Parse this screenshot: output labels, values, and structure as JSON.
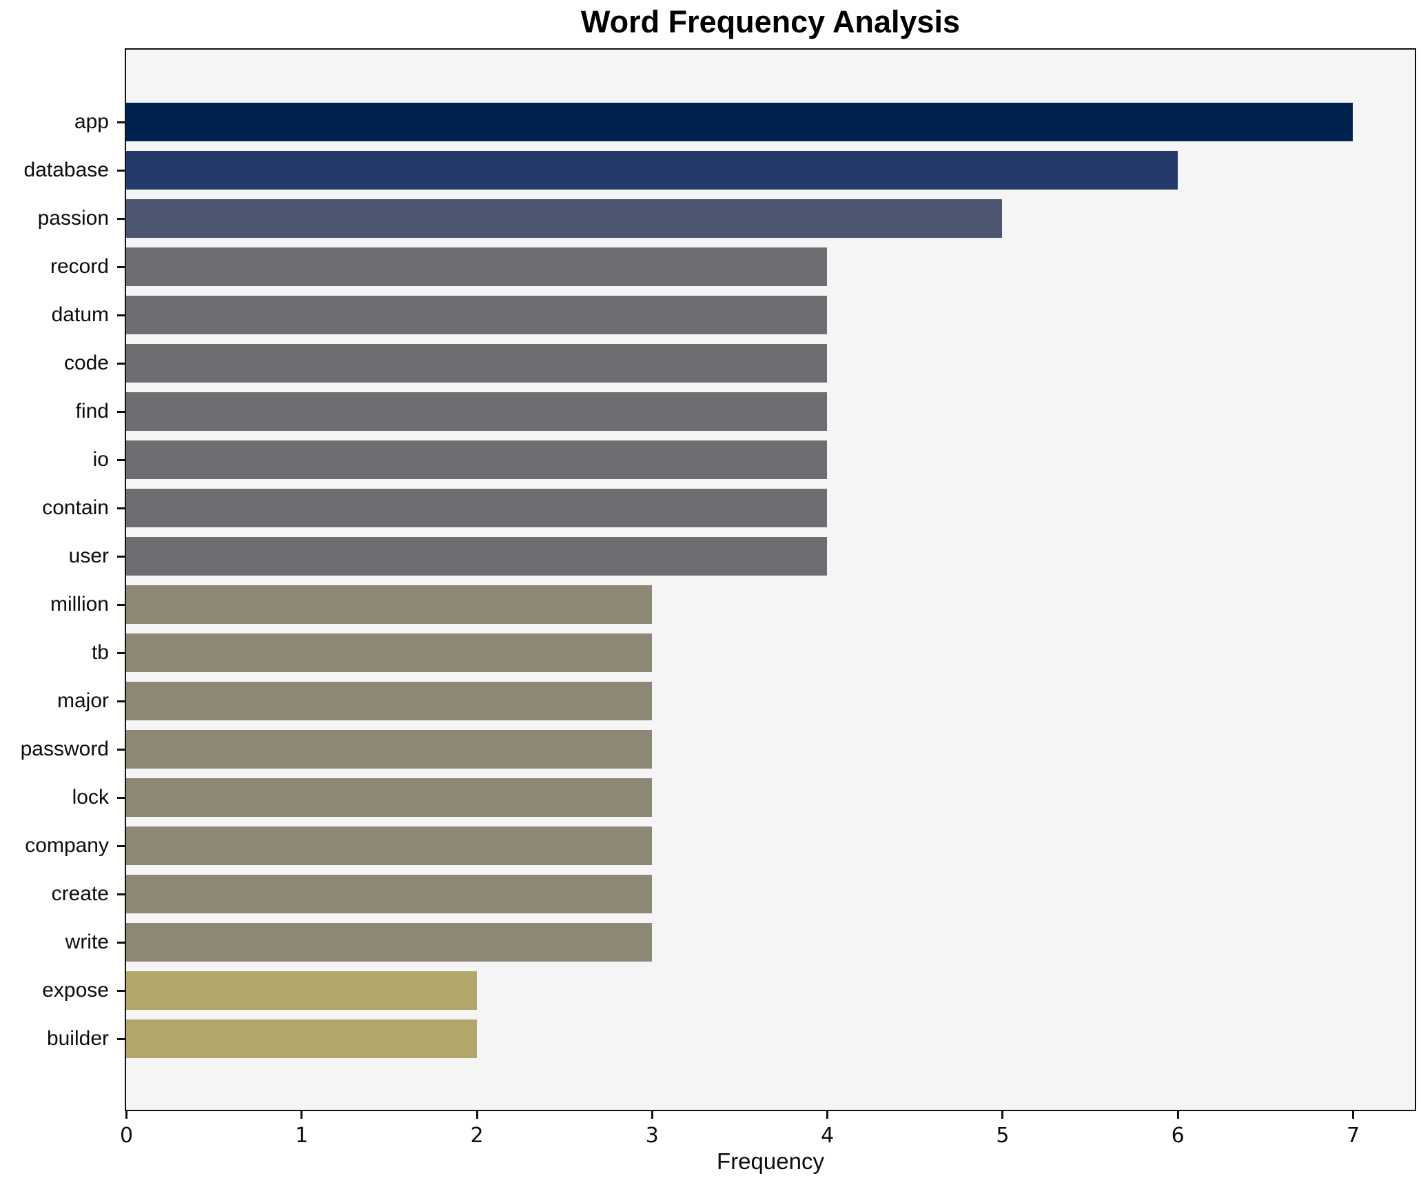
{
  "title": "Word Frequency Analysis",
  "chart_data": {
    "type": "bar",
    "orientation": "horizontal",
    "title": "Word Frequency Analysis",
    "xlabel": "Frequency",
    "ylabel": "",
    "categories": [
      "app",
      "database",
      "passion",
      "record",
      "datum",
      "code",
      "find",
      "io",
      "contain",
      "user",
      "million",
      "tb",
      "major",
      "password",
      "lock",
      "company",
      "create",
      "write",
      "expose",
      "builder"
    ],
    "values": [
      7,
      6,
      5,
      4,
      4,
      4,
      4,
      4,
      4,
      4,
      3,
      3,
      3,
      3,
      3,
      3,
      3,
      3,
      2,
      2
    ],
    "x_ticks": [
      0,
      1,
      2,
      3,
      4,
      5,
      6,
      7
    ],
    "xlim": [
      0,
      7.35
    ],
    "grid": false,
    "legend": null,
    "colors_by_value": {
      "7": "#00224e",
      "6": "#243a6b",
      "5": "#4d5671",
      "4": "#6c6e71",
      "3": "#8d8876",
      "2": "#b1a76a"
    },
    "plot_background": "#f5f5f6",
    "figure_background": "#ffffff",
    "spine_color": "#111111"
  }
}
